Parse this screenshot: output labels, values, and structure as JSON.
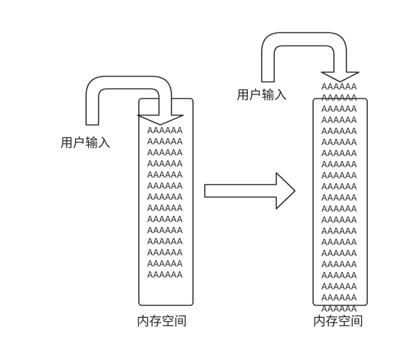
{
  "left_panel": {
    "input_label": "用户输入",
    "memory_label": "内存空间",
    "fill_text": "AAAAAA",
    "fill_rows": 14
  },
  "right_panel": {
    "input_label": "用户输入",
    "memory_label": "内存空间",
    "fill_text": "AAAAAA",
    "fill_rows": 21
  },
  "colors": {
    "stroke": "#2b2b2b",
    "fill": "#ffffff",
    "text": "#222222"
  },
  "icons": {
    "transition_arrow": "right-arrow-icon",
    "input_arrow": "u-turn-down-arrow-icon"
  }
}
